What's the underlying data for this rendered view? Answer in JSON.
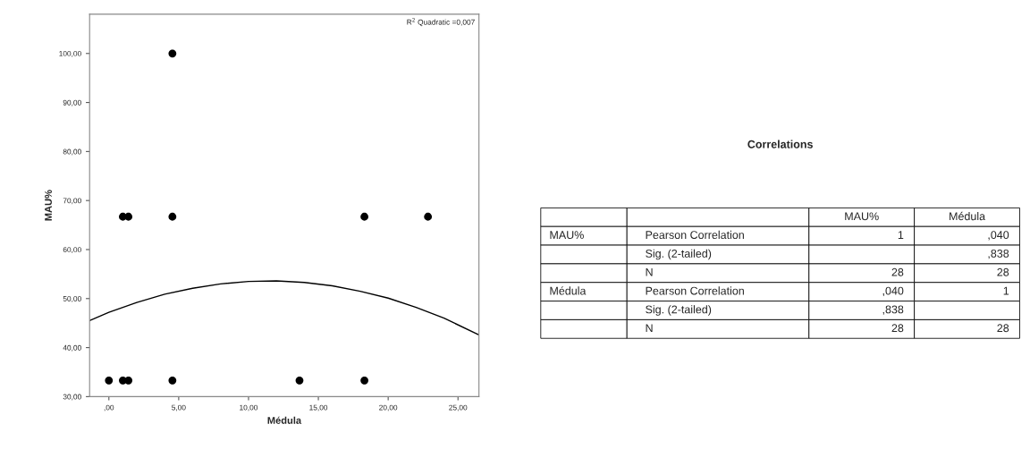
{
  "chart_data": [
    {
      "type": "scatter",
      "xlabel": "Médula",
      "ylabel": "MAU%",
      "annotations": [
        "R$^{2}$ Quadratic =0,007"
      ],
      "series": [
        {
          "type": "scatter",
          "color": "#000000",
          "marker": "circle",
          "x": [
            0,
            1,
            1.4,
            4.55,
            13.65,
            18.3,
            1,
            1.4,
            4.55,
            18.3,
            22.85,
            4.55
          ],
          "values": [
            33.3,
            33.3,
            33.3,
            33.3,
            33.3,
            33.3,
            66.7,
            66.7,
            66.7,
            66.7,
            66.7,
            100
          ]
        },
        {
          "type": "line",
          "color": "#000000",
          "x": [
            -1.38,
            0,
            2,
            4,
            6,
            8,
            10,
            12,
            14,
            16,
            18,
            20,
            22,
            24,
            26.5
          ],
          "values": [
            45.5,
            47.2,
            49.2,
            50.9,
            52.1,
            53.0,
            53.5,
            53.6,
            53.3,
            52.6,
            51.5,
            50.1,
            48.2,
            46.0,
            42.6
          ]
        }
      ],
      "xlim": [
        -1.38,
        26.5
      ],
      "ylim": [
        30,
        108
      ],
      "xticks": [
        {
          "value": 0,
          "label": ",00"
        },
        {
          "value": 5,
          "label": "5,00"
        },
        {
          "value": 10,
          "label": "10,00"
        },
        {
          "value": 15,
          "label": "15,00"
        },
        {
          "value": 20,
          "label": "20,00"
        },
        {
          "value": 25,
          "label": "25,00"
        }
      ],
      "yticks": [
        {
          "value": 30,
          "label": "30,00"
        },
        {
          "value": 40,
          "label": "40,00"
        },
        {
          "value": 50,
          "label": "50,00"
        },
        {
          "value": 60,
          "label": "60,00"
        },
        {
          "value": 70,
          "label": "70,00"
        },
        {
          "value": 80,
          "label": "80,00"
        },
        {
          "value": 90,
          "label": "90,00"
        },
        {
          "value": 100,
          "label": "100,00"
        }
      ],
      "grid": false,
      "legend": false
    },
    {
      "type": "other",
      "title": "Correlations",
      "categories": [
        null,
        null,
        "MAU%",
        "Médula"
      ],
      "cell_labels": [
        [
          "MAU%",
          "Pearson Correlation",
          "1",
          ",040"
        ],
        [
          null,
          "Sig. (2-tailed)",
          null,
          ",838"
        ],
        [
          null,
          "N",
          "28",
          "28"
        ],
        [
          "Médula",
          "Pearson Correlation",
          ",040",
          "1"
        ],
        [
          null,
          "Sig. (2-tailed)",
          ",838",
          null
        ],
        [
          null,
          "N",
          "28",
          "28"
        ]
      ]
    }
  ]
}
